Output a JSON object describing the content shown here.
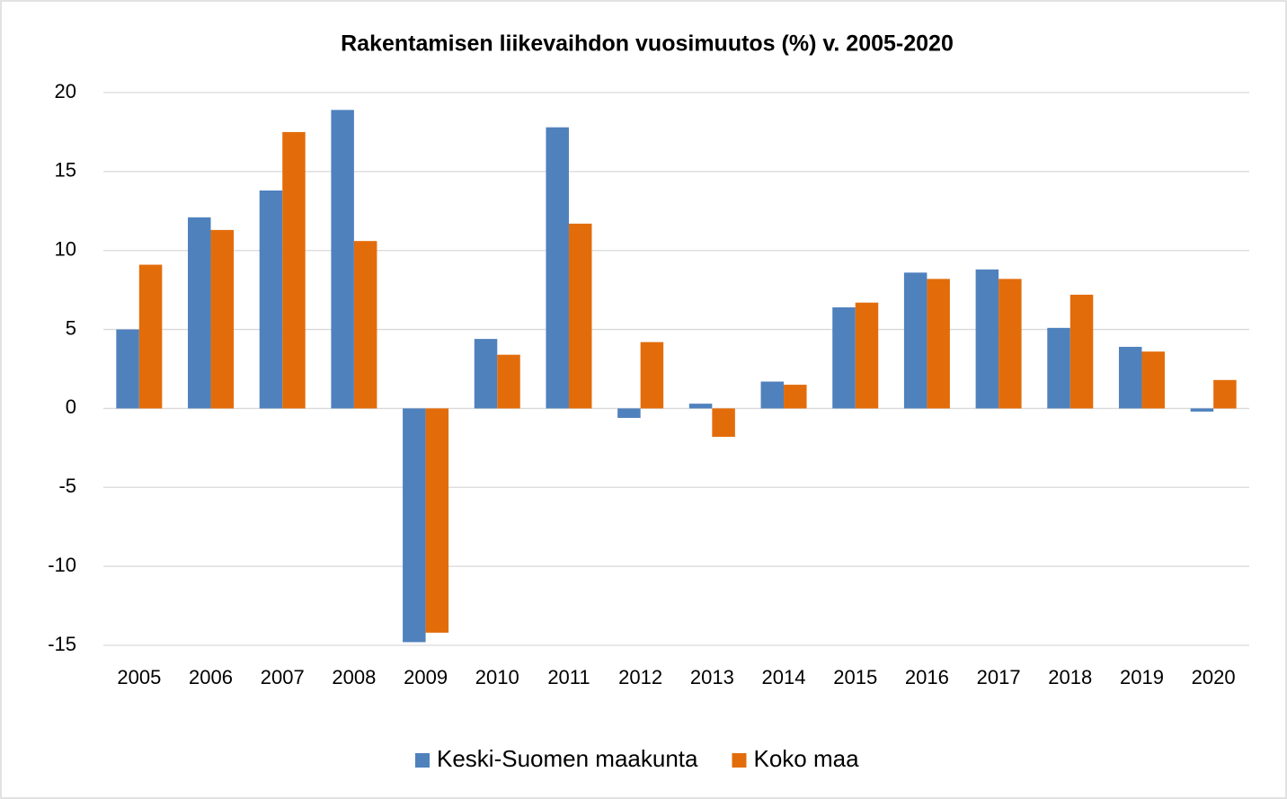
{
  "chart_data": {
    "type": "bar",
    "title": "Rakentamisen liikevaihdon vuosimuutos (%) v. 2005-2020",
    "categories": [
      "2005",
      "2006",
      "2007",
      "2008",
      "2009",
      "2010",
      "2011",
      "2012",
      "2013",
      "2014",
      "2015",
      "2016",
      "2017",
      "2018",
      "2019",
      "2020"
    ],
    "series": [
      {
        "name": "Keski-Suomen maakunta",
        "color": "#4f81bd",
        "values": [
          5.0,
          12.1,
          13.8,
          18.9,
          -14.8,
          4.4,
          17.8,
          -0.6,
          0.3,
          1.7,
          6.4,
          8.6,
          8.8,
          5.1,
          3.9,
          -0.2
        ]
      },
      {
        "name": "Koko maa",
        "color": "#e36c0a",
        "values": [
          9.1,
          11.3,
          17.5,
          10.6,
          -14.2,
          3.4,
          11.7,
          4.2,
          -1.8,
          1.5,
          6.7,
          8.2,
          8.2,
          7.2,
          3.6,
          1.8
        ]
      }
    ],
    "ylim": [
      -15,
      20
    ],
    "yticks": [
      -15,
      -10,
      -5,
      0,
      5,
      10,
      15,
      20
    ],
    "grid": true,
    "legend": "bottom"
  }
}
